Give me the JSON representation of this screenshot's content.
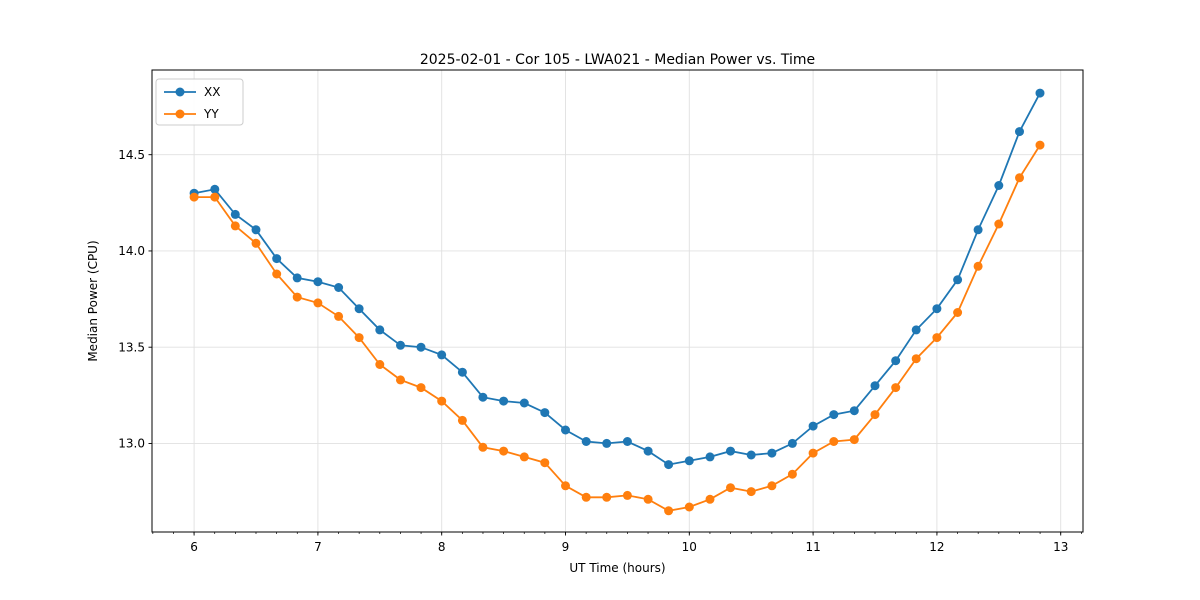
{
  "figure": {
    "background": "#ffffff",
    "frame_color": "#000000"
  },
  "chart_data": {
    "type": "line",
    "title": "2025-02-01 - Cor 105 - LWA021 - Median Power vs. Time",
    "xlabel": "UT Time (hours)",
    "ylabel": "Median Power (CPU)",
    "x": [
      6.0,
      6.167,
      6.333,
      6.5,
      6.667,
      6.833,
      7.0,
      7.167,
      7.333,
      7.5,
      7.667,
      7.833,
      8.0,
      8.167,
      8.333,
      8.5,
      8.667,
      8.833,
      9.0,
      9.167,
      9.333,
      9.5,
      9.667,
      9.833,
      10.0,
      10.167,
      10.333,
      10.5,
      10.667,
      10.833,
      11.0,
      11.167,
      11.333,
      11.5,
      11.667,
      11.833,
      12.0,
      12.167,
      12.333,
      12.5,
      12.667,
      12.833
    ],
    "series": [
      {
        "name": "XX",
        "color": "#1f77b4",
        "marker": "circle",
        "values": [
          14.3,
          14.32,
          14.19,
          14.11,
          13.96,
          13.86,
          13.84,
          13.81,
          13.7,
          13.59,
          13.51,
          13.5,
          13.46,
          13.37,
          13.24,
          13.22,
          13.21,
          13.16,
          13.07,
          13.01,
          13.0,
          13.01,
          12.96,
          12.89,
          12.91,
          12.93,
          12.96,
          12.94,
          12.95,
          13.0,
          13.09,
          13.15,
          13.17,
          13.3,
          13.43,
          13.59,
          13.7,
          13.85,
          14.11,
          14.34,
          14.62,
          14.82
        ]
      },
      {
        "name": "YY",
        "color": "#ff7f0e",
        "marker": "circle",
        "values": [
          14.28,
          14.28,
          14.13,
          14.04,
          13.88,
          13.76,
          13.73,
          13.66,
          13.55,
          13.41,
          13.33,
          13.29,
          13.22,
          13.12,
          12.98,
          12.96,
          12.93,
          12.9,
          12.78,
          12.72,
          12.72,
          12.73,
          12.71,
          12.65,
          12.67,
          12.71,
          12.77,
          12.75,
          12.78,
          12.84,
          12.95,
          13.01,
          13.02,
          13.15,
          13.29,
          13.44,
          13.55,
          13.68,
          13.92,
          14.14,
          14.38,
          14.55
        ]
      }
    ],
    "xlim": [
      5.66,
      13.18
    ],
    "ylim": [
      12.54,
      14.94
    ],
    "x_ticks": [
      6,
      7,
      8,
      9,
      10,
      11,
      12,
      13
    ],
    "x_tick_labels": [
      "6",
      "7",
      "8",
      "9",
      "10",
      "11",
      "12",
      "13"
    ],
    "x_minor_tick_step": 0.1666667,
    "y_ticks": [
      13.0,
      13.5,
      14.0,
      14.5
    ],
    "y_tick_labels": [
      "13.0",
      "13.5",
      "14.0",
      "14.5"
    ],
    "grid": true,
    "grid_color": "#e0e0e0",
    "legend": {
      "position": "upper left",
      "entries": [
        "XX",
        "YY"
      ]
    }
  }
}
